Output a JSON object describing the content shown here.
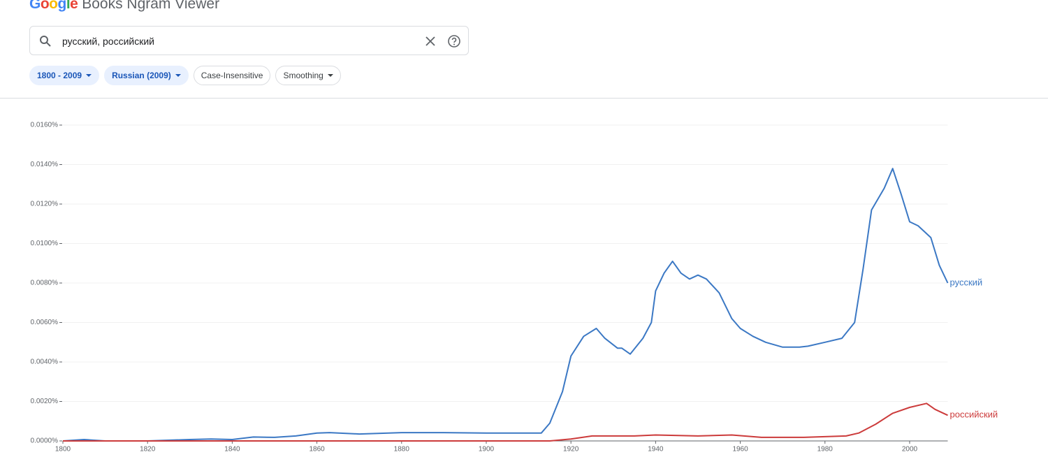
{
  "header": {
    "logo": "Google",
    "title": "Books Ngram Viewer"
  },
  "search": {
    "query": "русский, российский"
  },
  "chips": [
    "1800 - 2009",
    "Russian (2009)",
    "Case-Insensitive",
    "Smoothing"
  ],
  "chart_data": {
    "type": "line",
    "xlim": [
      1800,
      2009
    ],
    "xticks": [
      1800,
      1820,
      1840,
      1860,
      1880,
      1900,
      1920,
      1940,
      1960,
      1980,
      2000
    ],
    "ylim": [
      0,
      0.016
    ],
    "yticks": [
      {
        "value": 0,
        "label": "0.0000%"
      },
      {
        "value": 0.002,
        "label": "0.0020%"
      },
      {
        "value": 0.004,
        "label": "0.0040%"
      },
      {
        "value": 0.006,
        "label": "0.0060%"
      },
      {
        "value": 0.008,
        "label": "0.0080%"
      },
      {
        "value": 0.01,
        "label": "0.0100%"
      },
      {
        "value": 0.012,
        "label": "0.0120%"
      },
      {
        "value": 0.014,
        "label": "0.0140%"
      },
      {
        "value": 0.016,
        "label": "0.0160%"
      }
    ],
    "grid": true,
    "series": [
      {
        "name": "русский",
        "color": "#3b78c4",
        "x": [
          1800,
          1805,
          1810,
          1820,
          1830,
          1835,
          1840,
          1845,
          1850,
          1855,
          1860,
          1863,
          1870,
          1880,
          1890,
          1900,
          1910,
          1913,
          1915,
          1918,
          1920,
          1923,
          1926,
          1928,
          1931,
          1932,
          1934,
          1937,
          1939,
          1940,
          1942,
          1944,
          1946,
          1948,
          1950,
          1952,
          1955,
          1958,
          1960,
          1963,
          1966,
          1970,
          1974,
          1976,
          1980,
          1984,
          1987,
          1989,
          1991,
          1994,
          1996,
          1998,
          2000,
          2002,
          2005,
          2007,
          2009
        ],
        "values": [
          0,
          7e-05,
          0,
          0,
          7e-05,
          0.0001,
          7e-05,
          0.0002,
          0.00018,
          0.00025,
          0.0004,
          0.00042,
          0.00035,
          0.00042,
          0.00042,
          0.0004,
          0.0004,
          0.0004,
          0.0009,
          0.0025,
          0.0043,
          0.0053,
          0.0057,
          0.0052,
          0.0047,
          0.0047,
          0.0044,
          0.0052,
          0.006,
          0.0076,
          0.0085,
          0.0091,
          0.0085,
          0.0082,
          0.0084,
          0.0082,
          0.0075,
          0.0062,
          0.0057,
          0.0053,
          0.005,
          0.00475,
          0.00475,
          0.0048,
          0.005,
          0.0052,
          0.006,
          0.0087,
          0.0117,
          0.0128,
          0.0138,
          0.0125,
          0.0111,
          0.0109,
          0.0103,
          0.0089,
          0.008
        ]
      },
      {
        "name": "российский",
        "color": "#cc3b3b",
        "x": [
          1800,
          1850,
          1900,
          1915,
          1920,
          1925,
          1935,
          1940,
          1950,
          1958,
          1965,
          1975,
          1985,
          1988,
          1992,
          1996,
          2000,
          2004,
          2006,
          2009
        ],
        "values": [
          0,
          0,
          0,
          0,
          0.0001,
          0.00025,
          0.00025,
          0.0003,
          0.00025,
          0.0003,
          0.00018,
          0.00018,
          0.00025,
          0.0004,
          0.00085,
          0.0014,
          0.0017,
          0.0019,
          0.0016,
          0.0013
        ]
      }
    ]
  }
}
